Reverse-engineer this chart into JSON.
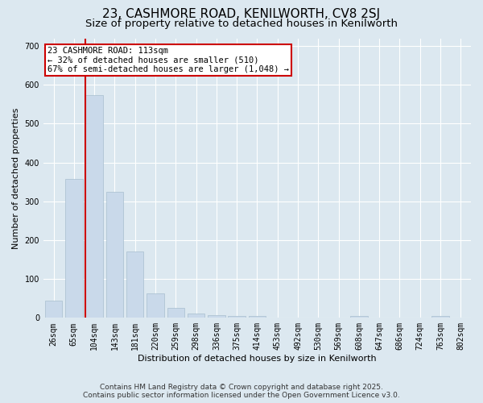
{
  "title": "23, CASHMORE ROAD, KENILWORTH, CV8 2SJ",
  "subtitle": "Size of property relative to detached houses in Kenilworth",
  "xlabel": "Distribution of detached houses by size in Kenilworth",
  "ylabel": "Number of detached properties",
  "categories": [
    "26sqm",
    "65sqm",
    "104sqm",
    "143sqm",
    "181sqm",
    "220sqm",
    "259sqm",
    "298sqm",
    "336sqm",
    "375sqm",
    "414sqm",
    "453sqm",
    "492sqm",
    "530sqm",
    "569sqm",
    "608sqm",
    "647sqm",
    "686sqm",
    "724sqm",
    "763sqm",
    "802sqm"
  ],
  "values": [
    45,
    358,
    573,
    325,
    170,
    62,
    25,
    12,
    7,
    5,
    4,
    0,
    0,
    0,
    0,
    5,
    0,
    0,
    0,
    5,
    0
  ],
  "bar_color": "#c9d9ea",
  "bar_edgecolor": "#a8bece",
  "annotation_text": "23 CASHMORE ROAD: 113sqm\n← 32% of detached houses are smaller (510)\n67% of semi-detached houses are larger (1,048) →",
  "annotation_box_color": "#ffffff",
  "annotation_box_edgecolor": "#cc0000",
  "footer_line1": "Contains HM Land Registry data © Crown copyright and database right 2025.",
  "footer_line2": "Contains public sector information licensed under the Open Government Licence v3.0.",
  "background_color": "#dce8f0",
  "plot_bg_color": "#dce8f0",
  "ylim": [
    0,
    720
  ],
  "yticks": [
    0,
    100,
    200,
    300,
    400,
    500,
    600,
    700
  ],
  "title_fontsize": 11,
  "subtitle_fontsize": 9.5,
  "tick_fontsize": 7,
  "ylabel_fontsize": 8,
  "xlabel_fontsize": 8,
  "footer_fontsize": 6.5,
  "annotation_fontsize": 7.5
}
